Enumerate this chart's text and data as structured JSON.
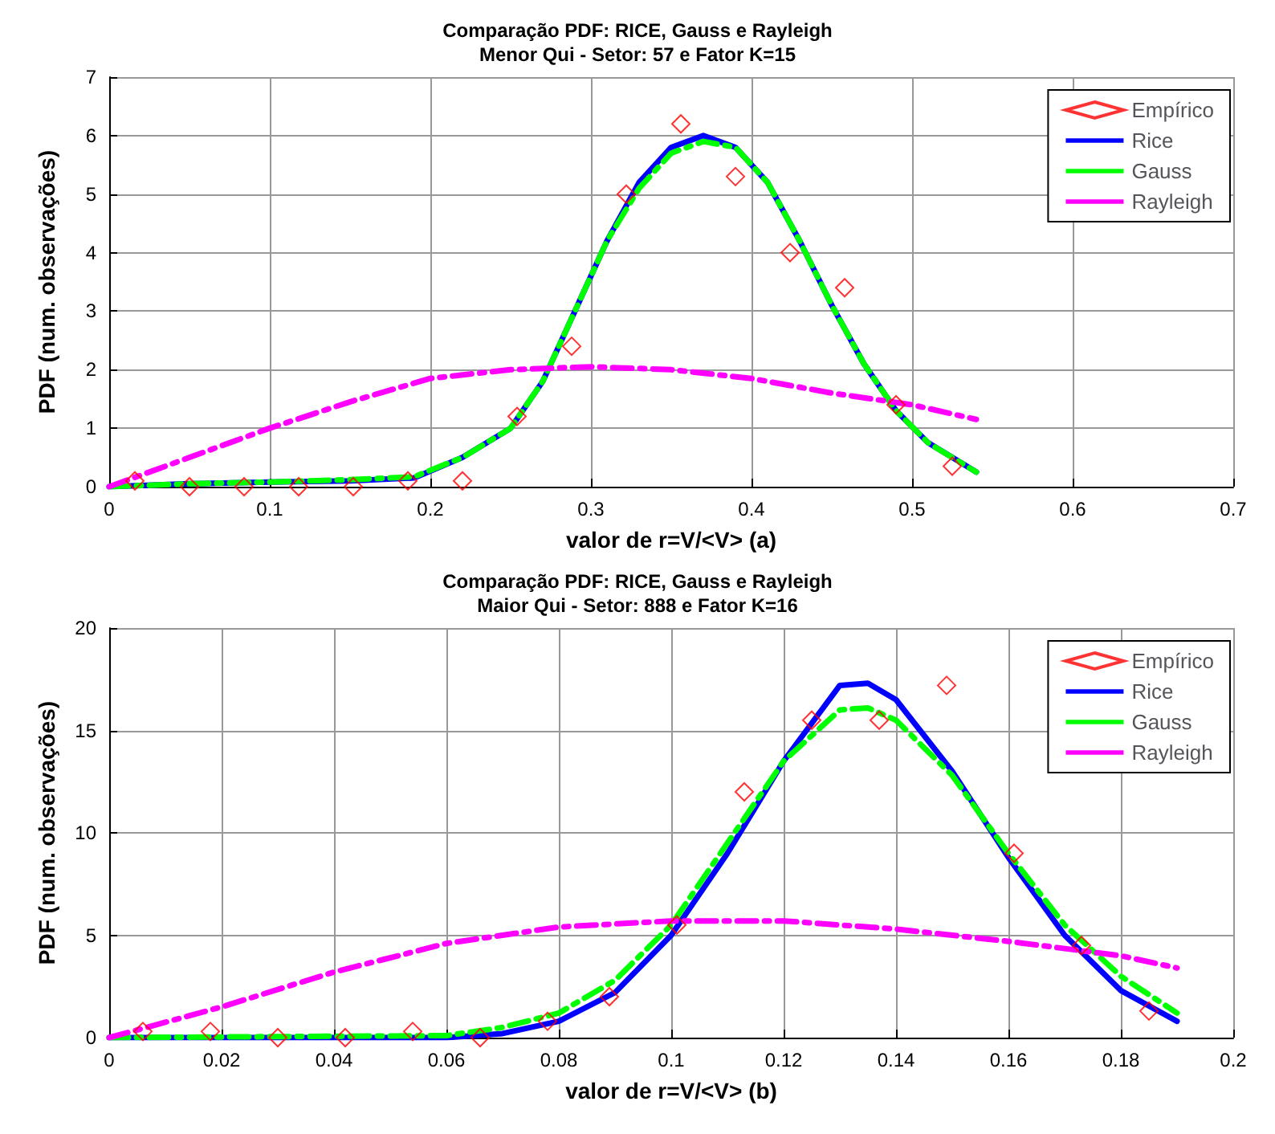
{
  "chart_data": [
    {
      "type": "line",
      "title": "Comparação PDF: RICE, Gauss e Rayleigh",
      "subtitle": "Menor Qui - Setor: 57 e Fator K=15",
      "xlabel": "valor de r=V/<V> (a)",
      "ylabel": "PDF (num. observações)",
      "xlim": [
        0,
        0.7
      ],
      "xticks": [
        0,
        0.1,
        0.2,
        0.3,
        0.4,
        0.5,
        0.6,
        0.7
      ],
      "ylim": [
        0,
        7
      ],
      "yticks": [
        0,
        1,
        2,
        3,
        4,
        5,
        6,
        7
      ],
      "grid": true,
      "legend": "top right",
      "series": [
        {
          "name": "Empírico",
          "type": "scatter",
          "marker": "diamond",
          "color": "#ff0000",
          "x": [
            0.016,
            0.05,
            0.084,
            0.118,
            0.152,
            0.186,
            0.22,
            0.254,
            0.288,
            0.322,
            0.356,
            0.39,
            0.424,
            0.458,
            0.49,
            0.525
          ],
          "values": [
            0.1,
            0,
            0,
            0,
            0,
            0.1,
            0.1,
            1.2,
            2.4,
            5,
            6.2,
            5.3,
            4,
            3.4,
            1.4,
            0.35
          ]
        },
        {
          "name": "Rice",
          "line_style": "solid",
          "color": "#0000ff",
          "x": [
            0,
            0.05,
            0.1,
            0.15,
            0.19,
            0.22,
            0.25,
            0.27,
            0.29,
            0.31,
            0.33,
            0.35,
            0.37,
            0.39,
            0.41,
            0.43,
            0.45,
            0.47,
            0.49,
            0.51,
            0.54
          ],
          "values": [
            0,
            0.05,
            0.08,
            0.1,
            0.15,
            0.5,
            1.0,
            1.8,
            3.0,
            4.2,
            5.2,
            5.8,
            6.0,
            5.8,
            5.2,
            4.2,
            3.1,
            2.1,
            1.3,
            0.75,
            0.25
          ]
        },
        {
          "name": "Gauss",
          "line_style": "dashed",
          "color": "#00ff00",
          "x": [
            0,
            0.05,
            0.1,
            0.15,
            0.19,
            0.22,
            0.25,
            0.27,
            0.29,
            0.31,
            0.33,
            0.35,
            0.37,
            0.39,
            0.41,
            0.43,
            0.45,
            0.47,
            0.49,
            0.51,
            0.54
          ],
          "values": [
            0,
            0.05,
            0.08,
            0.12,
            0.17,
            0.5,
            1.0,
            1.8,
            3.0,
            4.2,
            5.1,
            5.7,
            5.9,
            5.8,
            5.2,
            4.2,
            3.1,
            2.1,
            1.3,
            0.75,
            0.25
          ]
        },
        {
          "name": "Rayleigh",
          "line_style": "dashed",
          "color": "#ff00ff",
          "x": [
            0,
            0.05,
            0.1,
            0.15,
            0.2,
            0.25,
            0.3,
            0.35,
            0.4,
            0.45,
            0.5,
            0.54
          ],
          "values": [
            0,
            0.5,
            1.0,
            1.45,
            1.85,
            2.0,
            2.05,
            2.0,
            1.85,
            1.6,
            1.4,
            1.15
          ]
        }
      ]
    },
    {
      "type": "line",
      "title": "Comparação PDF: RICE, Gauss e Rayleigh",
      "subtitle": "Maior Qui - Setor: 888 e Fator K=16",
      "xlabel": "valor de r=V/<V> (b)",
      "ylabel": "PDF (num. observações)",
      "xlim": [
        0,
        0.2
      ],
      "xticks": [
        0,
        0.02,
        0.04,
        0.06,
        0.08,
        0.1,
        0.12,
        0.14,
        0.16,
        0.18,
        0.2
      ],
      "ylim": [
        0,
        20
      ],
      "yticks": [
        0,
        5,
        10,
        15,
        20
      ],
      "grid": true,
      "legend": "top right",
      "series": [
        {
          "name": "Empírico",
          "type": "scatter",
          "marker": "diamond",
          "color": "#ff0000",
          "x": [
            0.006,
            0.018,
            0.03,
            0.042,
            0.054,
            0.066,
            0.078,
            0.089,
            0.101,
            0.113,
            0.125,
            0.137,
            0.149,
            0.161,
            0.173,
            0.185
          ],
          "values": [
            0.3,
            0.3,
            0,
            0,
            0.3,
            0,
            0.8,
            2,
            5.5,
            12,
            15.5,
            15.5,
            17.2,
            9,
            4.5,
            1.3
          ]
        },
        {
          "name": "Rice",
          "line_style": "solid",
          "color": "#0000ff",
          "x": [
            0,
            0.06,
            0.07,
            0.08,
            0.09,
            0.1,
            0.11,
            0.12,
            0.13,
            0.135,
            0.14,
            0.15,
            0.16,
            0.17,
            0.18,
            0.19
          ],
          "values": [
            0,
            0,
            0.2,
            0.8,
            2.2,
            5,
            9,
            13.5,
            17.2,
            17.3,
            16.5,
            13,
            8.8,
            5,
            2.3,
            0.8
          ]
        },
        {
          "name": "Gauss",
          "line_style": "dashed",
          "color": "#00ff00",
          "x": [
            0,
            0.06,
            0.07,
            0.08,
            0.09,
            0.1,
            0.11,
            0.12,
            0.13,
            0.135,
            0.14,
            0.15,
            0.16,
            0.17,
            0.18,
            0.19
          ],
          "values": [
            0,
            0.1,
            0.5,
            1.2,
            2.8,
            5.5,
            9.5,
            13.5,
            16,
            16.1,
            15.5,
            12.8,
            9,
            5.5,
            3,
            1.2
          ]
        },
        {
          "name": "Rayleigh",
          "line_style": "dashed",
          "color": "#ff00ff",
          "x": [
            0,
            0.02,
            0.04,
            0.06,
            0.08,
            0.1,
            0.12,
            0.14,
            0.16,
            0.18,
            0.19
          ],
          "values": [
            0,
            1.5,
            3.2,
            4.6,
            5.4,
            5.7,
            5.7,
            5.3,
            4.7,
            4.0,
            3.4
          ]
        }
      ]
    }
  ]
}
